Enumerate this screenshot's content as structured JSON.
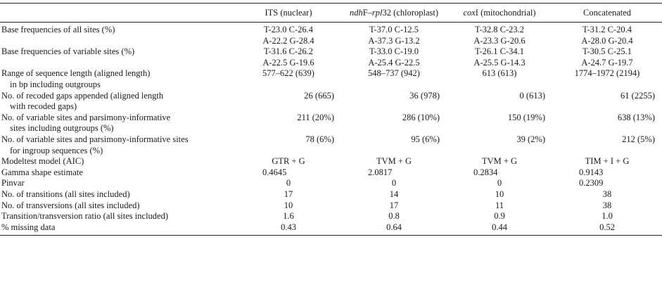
{
  "header": {
    "col1": "ITS (nuclear)",
    "col2_italic": "ndh",
    "col2_mid": "F–",
    "col2_italic2": "rpl",
    "col2_rest": "32 (chloroplast)",
    "col3_italic": "cox",
    "col3_rest": "I (mitochondrial)",
    "col4": "Concatenated"
  },
  "rows": {
    "r0": {
      "label": "Base frequencies of all sites (%)",
      "c1": "T-23.0 C-26.4",
      "c2": "T-37.0 C-12.5",
      "c3": "T-32.8 C-23.2",
      "c4": "T-31.2 C-20.4"
    },
    "r0b": {
      "c1": "A-22.2 G-28.4",
      "c2": "A-37.3 G-13.2",
      "c3": "A-23.3 G-20.6",
      "c4": "A-28.0 G-20.4"
    },
    "r1": {
      "label": "Base frequencies of variable sites (%)",
      "c1": "T-31.6 C-26.2",
      "c2": "T-33.0 C-19.0",
      "c3": "T-26.1 C-34.1",
      "c4": "T-30.5 C-25.1"
    },
    "r1b": {
      "c1": "A-22.5 G-19.6",
      "c2": "A-25.4 G-22.5",
      "c3": "A-25.5 G-14.3",
      "c4": "A-24.7 G-19.7"
    },
    "r2": {
      "label": "Range of sequence length (aligned length)",
      "c1": "577–622 (639)",
      "c2": "548–737 (942)",
      "c3": "613 (613)",
      "c4": "1774–1972 (2194)"
    },
    "r2b": {
      "label": "in bp including outgroups"
    },
    "r3": {
      "label": "No. of recoded gaps appended (aligned length",
      "c1": "26 (665)",
      "c2": "36 (978)",
      "c3": "0 (613)",
      "c4": "61 (2255)"
    },
    "r3b": {
      "label": "with recoded gaps)"
    },
    "r4": {
      "label": "No. of variable sites and parsimony-informative",
      "c1": "211 (20%)",
      "c2": "286 (10%)",
      "c3": "150 (19%)",
      "c4": "638 (13%)"
    },
    "r4b": {
      "label": "sites including outgroups (%)"
    },
    "r5": {
      "label": "No. of variable sites and parsimony-informative sites",
      "c1": "78 (6%)",
      "c2": "95 (6%)",
      "c3": "39 (2%)",
      "c4": "212 (5%)"
    },
    "r5b": {
      "label": "for ingroup sequences (%)"
    },
    "r6": {
      "label": "Modeltest model (AIC)",
      "c1": "GTR + G",
      "c2": "TVM + G",
      "c3": "TVM + G",
      "c4": "TIM + I + G"
    },
    "r7": {
      "label": "Gamma shape estimate",
      "c1": "0.4645",
      "c2": "2.0817",
      "c3": "0.2834",
      "c4": "0.9143"
    },
    "r8": {
      "label": "Pinvar",
      "c1": "0",
      "c2": "0",
      "c3": "0",
      "c4": "0.2309"
    },
    "r9": {
      "label": "No. of transitions (all sites included)",
      "c1": "17",
      "c2": "14",
      "c3": "10",
      "c4": "38"
    },
    "r10": {
      "label": "No. of transversions (all sites included)",
      "c1": "10",
      "c2": "17",
      "c3": "11",
      "c4": "38"
    },
    "r11": {
      "label": "Transition/transversion ratio (all sites included)",
      "c1": "1.6",
      "c2": "0.8",
      "c3": "0.9",
      "c4": "1.0"
    },
    "r12": {
      "label": "% missing data",
      "c1": "0.43",
      "c2": "0.64",
      "c3": "0.44",
      "c4": "0.52"
    }
  }
}
